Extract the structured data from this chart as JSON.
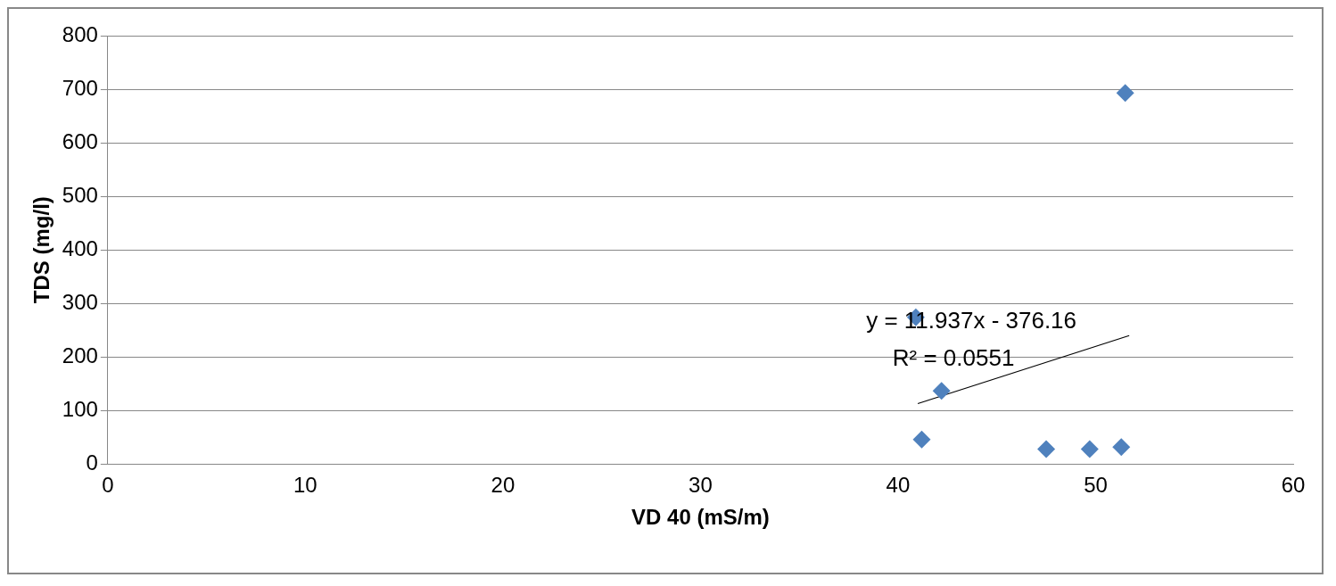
{
  "chart_data": {
    "type": "scatter",
    "xlabel": "VD 40 (mS/m)",
    "ylabel": "TDS (mg/l)",
    "xlim": [
      0,
      60
    ],
    "xticks": [
      0,
      10,
      20,
      30,
      40,
      50,
      60
    ],
    "ylim": [
      0,
      800
    ],
    "yticks": [
      0,
      100,
      200,
      300,
      400,
      500,
      600,
      700,
      800
    ],
    "grid": "y",
    "legend": false,
    "marker": "diamond",
    "series": [
      {
        "color": "#4f81bd",
        "x": [
          51.5,
          40.9,
          42.2,
          41.2,
          47.5,
          49.7,
          51.3
        ],
        "values": [
          693,
          274,
          137,
          46,
          28,
          28,
          32
        ]
      },
      {
        "type": "line",
        "color": "#000000",
        "marker": "none",
        "x": [
          41.0,
          51.7
        ],
        "values": [
          113,
          240
        ]
      }
    ],
    "annotations": [
      "y = 11.937x - 376.16",
      "R² = 0.0551"
    ]
  }
}
